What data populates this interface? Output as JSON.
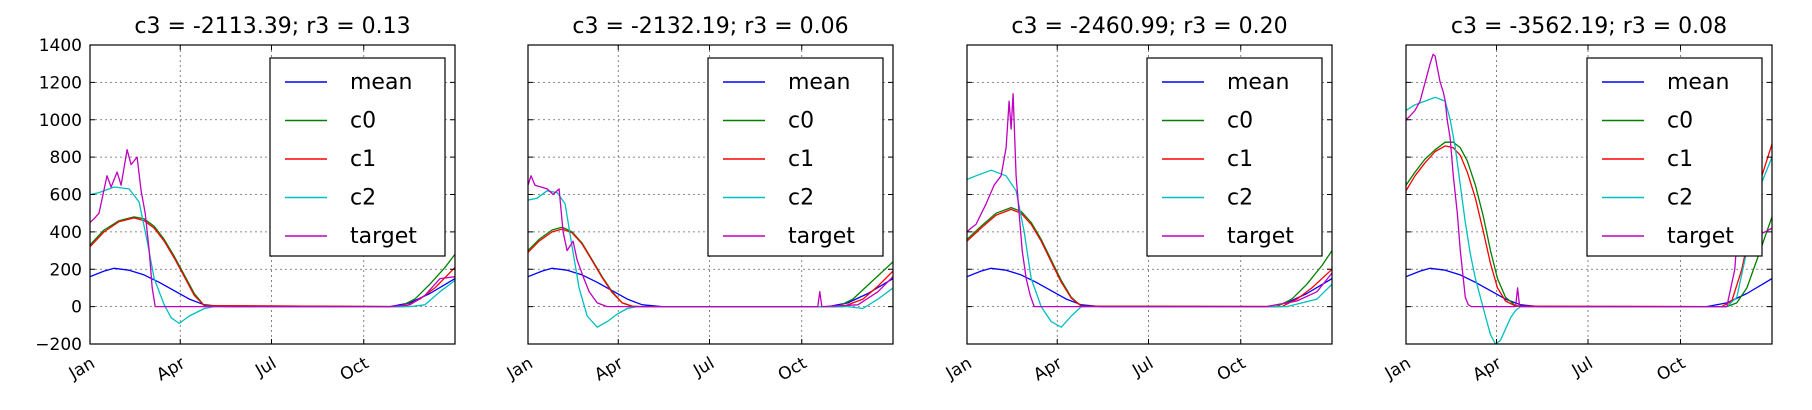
{
  "figure": {
    "tick_labels_y": [
      "1400",
      "1200",
      "1000",
      "800",
      "600",
      "400",
      "200",
      "0",
      "−200"
    ],
    "tick_labels_x": [
      "Jan",
      "Apr",
      "Jul",
      "Oct"
    ]
  },
  "chart_data": [
    {
      "type": "line",
      "title": "c3 = -2113.39; r3 = 0.13",
      "xlabel": "",
      "ylabel": "",
      "xlim": [
        1,
        365
      ],
      "ylim": [
        -200,
        1400
      ],
      "xticks": [
        {
          "label": "Jan",
          "day": 1
        },
        {
          "label": "Apr",
          "day": 91
        },
        {
          "label": "Jul",
          "day": 182
        },
        {
          "label": "Oct",
          "day": 274
        }
      ],
      "yticks": [
        -200,
        0,
        200,
        400,
        600,
        800,
        1000,
        1200,
        1400
      ],
      "grid": true,
      "legend_position": "upper-right",
      "series": [
        {
          "name": "mean",
          "color": "#0000ff",
          "x": [
            1,
            15,
            25,
            40,
            55,
            70,
            85,
            100,
            115,
            135,
            300,
            320,
            340,
            365
          ],
          "y": [
            160,
            190,
            205,
            195,
            170,
            130,
            85,
            40,
            10,
            0,
            0,
            20,
            70,
            150
          ]
        },
        {
          "name": "c0",
          "color": "#008000",
          "x": [
            1,
            15,
            30,
            45,
            55,
            65,
            75,
            85,
            95,
            105,
            115,
            310,
            325,
            340,
            355,
            365
          ],
          "y": [
            330,
            410,
            460,
            480,
            470,
            430,
            360,
            270,
            170,
            70,
            5,
            0,
            40,
            120,
            210,
            280
          ]
        },
        {
          "name": "c1",
          "color": "#ff0000",
          "x": [
            1,
            15,
            30,
            45,
            55,
            65,
            75,
            85,
            95,
            105,
            115,
            315,
            330,
            345,
            365
          ],
          "y": [
            320,
            400,
            455,
            475,
            460,
            420,
            350,
            260,
            160,
            60,
            5,
            0,
            40,
            100,
            210
          ]
        },
        {
          "name": "c2",
          "color": "#00bfbf",
          "x": [
            1,
            10,
            25,
            40,
            50,
            58,
            65,
            75,
            82,
            90,
            100,
            115,
            125,
            320,
            335,
            350,
            365
          ],
          "y": [
            600,
            610,
            640,
            630,
            560,
            350,
            150,
            10,
            -60,
            -90,
            -50,
            -10,
            0,
            0,
            10,
            80,
            140
          ]
        },
        {
          "name": "target",
          "color": "#bf00bf",
          "x": [
            1,
            5,
            10,
            18,
            22,
            28,
            32,
            38,
            42,
            48,
            52,
            56,
            60,
            63,
            66,
            300,
            320,
            335,
            350,
            365
          ],
          "y": [
            450,
            470,
            500,
            700,
            640,
            720,
            650,
            840,
            760,
            800,
            620,
            500,
            300,
            100,
            0,
            0,
            10,
            60,
            150,
            160
          ]
        }
      ]
    },
    {
      "type": "line",
      "title": "c3 = -2132.19; r3 = 0.06",
      "xlabel": "",
      "ylabel": "",
      "xlim": [
        1,
        365
      ],
      "ylim": [
        -200,
        1400
      ],
      "xticks": [
        {
          "label": "Jan",
          "day": 1
        },
        {
          "label": "Apr",
          "day": 91
        },
        {
          "label": "Jul",
          "day": 182
        },
        {
          "label": "Oct",
          "day": 274
        }
      ],
      "yticks": [
        -200,
        0,
        200,
        400,
        600,
        800,
        1000,
        1200,
        1400
      ],
      "grid": true,
      "legend_position": "upper-right",
      "series": [
        {
          "name": "mean",
          "color": "#0000ff",
          "x": [
            1,
            15,
            25,
            40,
            55,
            70,
            85,
            100,
            115,
            135,
            300,
            320,
            340,
            365
          ],
          "y": [
            160,
            190,
            205,
            195,
            170,
            130,
            85,
            40,
            10,
            0,
            0,
            20,
            70,
            150
          ]
        },
        {
          "name": "c0",
          "color": "#008000",
          "x": [
            1,
            12,
            25,
            35,
            45,
            55,
            65,
            75,
            85,
            95,
            105,
            115,
            310,
            325,
            345,
            365
          ],
          "y": [
            300,
            360,
            410,
            425,
            400,
            340,
            250,
            160,
            80,
            20,
            2,
            0,
            0,
            40,
            140,
            240
          ]
        },
        {
          "name": "c1",
          "color": "#ff0000",
          "x": [
            1,
            12,
            25,
            35,
            45,
            55,
            65,
            75,
            85,
            95,
            105,
            115,
            315,
            335,
            350,
            365
          ],
          "y": [
            290,
            350,
            400,
            415,
            395,
            335,
            245,
            155,
            75,
            20,
            2,
            0,
            0,
            40,
            110,
            190
          ]
        },
        {
          "name": "c2",
          "color": "#00bfbf",
          "x": [
            1,
            10,
            20,
            30,
            38,
            45,
            52,
            60,
            70,
            80,
            90,
            100,
            110,
            320,
            335,
            350,
            365
          ],
          "y": [
            570,
            580,
            620,
            610,
            550,
            320,
            100,
            -50,
            -110,
            -80,
            -40,
            -10,
            0,
            0,
            -10,
            40,
            100
          ]
        },
        {
          "name": "target",
          "color": "#bf00bf",
          "x": [
            1,
            4,
            8,
            14,
            20,
            26,
            32,
            36,
            40,
            46,
            50,
            56,
            62,
            70,
            80,
            290,
            292,
            294,
            330,
            350,
            365
          ],
          "y": [
            650,
            700,
            650,
            640,
            630,
            600,
            630,
            400,
            300,
            350,
            250,
            160,
            80,
            20,
            0,
            0,
            80,
            0,
            10,
            80,
            160
          ]
        }
      ]
    },
    {
      "type": "line",
      "title": "c3 = -2460.99; r3 = 0.20",
      "xlabel": "",
      "ylabel": "",
      "xlim": [
        1,
        365
      ],
      "ylim": [
        -200,
        1400
      ],
      "xticks": [
        {
          "label": "Jan",
          "day": 1
        },
        {
          "label": "Apr",
          "day": 91
        },
        {
          "label": "Jul",
          "day": 182
        },
        {
          "label": "Oct",
          "day": 274
        }
      ],
      "yticks": [
        -200,
        0,
        200,
        400,
        600,
        800,
        1000,
        1200,
        1400
      ],
      "grid": true,
      "legend_position": "upper-right",
      "series": [
        {
          "name": "mean",
          "color": "#0000ff",
          "x": [
            1,
            15,
            25,
            40,
            55,
            70,
            85,
            100,
            115,
            135,
            300,
            320,
            340,
            365
          ],
          "y": [
            160,
            190,
            205,
            195,
            170,
            130,
            85,
            40,
            10,
            0,
            0,
            20,
            70,
            150
          ]
        },
        {
          "name": "c0",
          "color": "#008000",
          "x": [
            1,
            15,
            30,
            45,
            55,
            65,
            75,
            85,
            95,
            105,
            115,
            310,
            325,
            340,
            355,
            365
          ],
          "y": [
            360,
            430,
            500,
            530,
            510,
            450,
            360,
            250,
            140,
            50,
            3,
            0,
            40,
            120,
            220,
            300
          ]
        },
        {
          "name": "c1",
          "color": "#ff0000",
          "x": [
            1,
            15,
            30,
            45,
            55,
            65,
            75,
            85,
            95,
            105,
            115,
            315,
            330,
            345,
            365
          ],
          "y": [
            350,
            420,
            490,
            520,
            500,
            440,
            350,
            240,
            130,
            45,
            3,
            0,
            40,
            100,
            200
          ]
        },
        {
          "name": "c2",
          "color": "#00bfbf",
          "x": [
            1,
            10,
            25,
            40,
            50,
            58,
            65,
            75,
            85,
            95,
            105,
            115,
            320,
            335,
            350,
            365
          ],
          "y": [
            680,
            700,
            730,
            700,
            620,
            400,
            150,
            0,
            -80,
            -110,
            -50,
            0,
            0,
            20,
            40,
            120
          ]
        },
        {
          "name": "target",
          "color": "#bf00bf",
          "x": [
            1,
            5,
            10,
            20,
            28,
            35,
            40,
            43,
            45,
            47,
            50,
            53,
            56,
            60,
            64,
            68,
            72,
            300,
            330,
            350,
            365
          ],
          "y": [
            400,
            420,
            440,
            550,
            650,
            700,
            850,
            1100,
            950,
            1140,
            700,
            500,
            300,
            150,
            60,
            0,
            0,
            0,
            30,
            80,
            180
          ]
        }
      ]
    },
    {
      "type": "line",
      "title": "c3 = -3562.19; r3 = 0.08",
      "xlabel": "",
      "ylabel": "",
      "xlim": [
        1,
        365
      ],
      "ylim": [
        -200,
        1400
      ],
      "xticks": [
        {
          "label": "Jan",
          "day": 1
        },
        {
          "label": "Apr",
          "day": 91
        },
        {
          "label": "Jul",
          "day": 182
        },
        {
          "label": "Oct",
          "day": 274
        }
      ],
      "yticks": [
        -200,
        0,
        200,
        400,
        600,
        800,
        1000,
        1200,
        1400
      ],
      "grid": true,
      "legend_position": "upper-right",
      "series": [
        {
          "name": "mean",
          "color": "#0000ff",
          "x": [
            1,
            15,
            25,
            40,
            55,
            70,
            85,
            100,
            115,
            135,
            300,
            320,
            340,
            365
          ],
          "y": [
            160,
            190,
            205,
            195,
            170,
            130,
            85,
            40,
            10,
            0,
            0,
            20,
            70,
            150
          ]
        },
        {
          "name": "c0",
          "color": "#008000",
          "x": [
            1,
            10,
            20,
            30,
            40,
            48,
            55,
            62,
            70,
            78,
            85,
            92,
            100,
            110,
            120,
            320,
            330,
            340,
            350,
            365
          ],
          "y": [
            650,
            720,
            790,
            840,
            880,
            880,
            850,
            780,
            650,
            480,
            300,
            150,
            50,
            5,
            0,
            0,
            20,
            100,
            250,
            480
          ]
        },
        {
          "name": "c1",
          "color": "#ff0000",
          "x": [
            1,
            10,
            20,
            30,
            40,
            48,
            55,
            62,
            70,
            78,
            85,
            92,
            100,
            110,
            315,
            325,
            335,
            345,
            355,
            365
          ],
          "y": [
            620,
            700,
            770,
            830,
            860,
            850,
            810,
            720,
            580,
            400,
            230,
            100,
            30,
            3,
            0,
            30,
            200,
            450,
            700,
            870
          ]
        },
        {
          "name": "c2",
          "color": "#00bfbf",
          "x": [
            1,
            10,
            20,
            30,
            40,
            45,
            50,
            55,
            60,
            65,
            70,
            75,
            80,
            85,
            90,
            95,
            100,
            105,
            110,
            115,
            120,
            320,
            330,
            340,
            350,
            365
          ],
          "y": [
            1050,
            1080,
            1100,
            1120,
            1100,
            1000,
            850,
            650,
            450,
            280,
            150,
            50,
            -50,
            -150,
            -200,
            -180,
            -120,
            -60,
            -20,
            0,
            0,
            0,
            50,
            300,
            600,
            800
          ]
        },
        {
          "name": "target",
          "color": "#bf00bf",
          "x": [
            1,
            5,
            10,
            15,
            20,
            25,
            28,
            30,
            32,
            35,
            38,
            40,
            42,
            45,
            48,
            52,
            55,
            58,
            60,
            63,
            66,
            110,
            112,
            114,
            320,
            328,
            332,
            336,
            340,
            345,
            350,
            358,
            365
          ],
          "y": [
            1000,
            1020,
            1050,
            1100,
            1200,
            1300,
            1350,
            1340,
            1280,
            1200,
            1150,
            1100,
            1000,
            900,
            700,
            500,
            300,
            150,
            50,
            10,
            0,
            0,
            100,
            0,
            0,
            200,
            500,
            800,
            600,
            450,
            380,
            400,
            420
          ]
        }
      ]
    }
  ]
}
